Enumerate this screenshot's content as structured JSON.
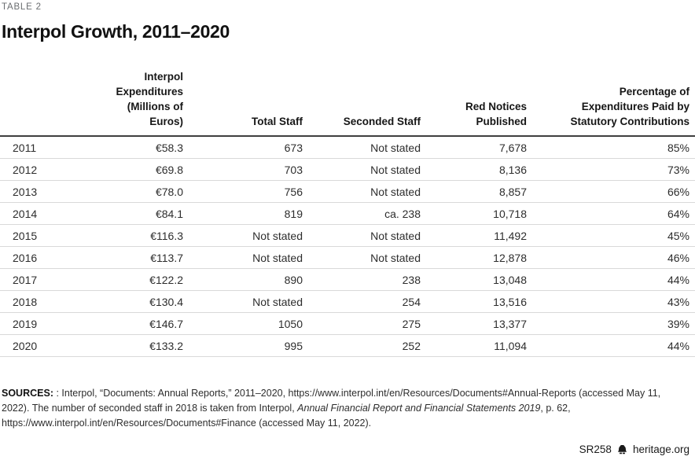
{
  "page": {
    "label": "TABLE 2",
    "title": "Interpol Growth, 2011–2020"
  },
  "colors": {
    "header_rule": "#3f3f3f",
    "row_divider": "#d9d9d9",
    "label_gray": "#6a6d70",
    "text": "#2d2d2d"
  },
  "table": {
    "columns": [
      {
        "id": "year",
        "label": ""
      },
      {
        "id": "expenditures",
        "label": "Interpol\nExpenditures\n(Millions of Euros)"
      },
      {
        "id": "total_staff",
        "label": "Total Staff"
      },
      {
        "id": "seconded_staff",
        "label": "Seconded Staff"
      },
      {
        "id": "red_notices",
        "label": "Red Notices\nPublished"
      },
      {
        "id": "pct_statutory",
        "label": "Percentage of\nExpenditures Paid by\nStatutory Contributions"
      }
    ],
    "rows": [
      [
        "2011",
        "€58.3",
        "673",
        "Not stated",
        "7,678",
        "85%"
      ],
      [
        "2012",
        "€69.8",
        "703",
        "Not stated",
        "8,136",
        "73%"
      ],
      [
        "2013",
        "€78.0",
        "756",
        "Not stated",
        "8,857",
        "66%"
      ],
      [
        "2014",
        "€84.1",
        "819",
        "ca. 238",
        "10,718",
        "64%"
      ],
      [
        "2015",
        "€116.3",
        "Not stated",
        "Not stated",
        "11,492",
        "45%"
      ],
      [
        "2016",
        "€113.7",
        "Not stated",
        "Not stated",
        "12,878",
        "46%"
      ],
      [
        "2017",
        "€122.2",
        "890",
        "238",
        "13,048",
        "44%"
      ],
      [
        "2018",
        "€130.4",
        "Not stated",
        "254",
        "13,516",
        "43%"
      ],
      [
        "2019",
        "€146.7",
        "1050",
        "275",
        "13,377",
        "39%"
      ],
      [
        "2020",
        "€133.2",
        "995",
        "252",
        "11,094",
        "44%"
      ]
    ]
  },
  "sources": {
    "label": "SOURCES:",
    "text_before_italic": " : Interpol, “Documents: Annual Reports,” 2011–2020, https://www.interpol.int/en/Resources/Documents#Annual-Reports (accessed May 11, 2022). The number of seconded staff in 2018 is taken from Interpol, ",
    "italic_text": "Annual Financial Report and Financial Statements 2019",
    "text_after_italic": ", p. 62, https://www.interpol.int/en/Resources/Documents#Finance (accessed May 11, 2022)."
  },
  "footer": {
    "report_id": "SR258",
    "logo_icon": "liberty-bell-icon",
    "site": "heritage.org"
  }
}
